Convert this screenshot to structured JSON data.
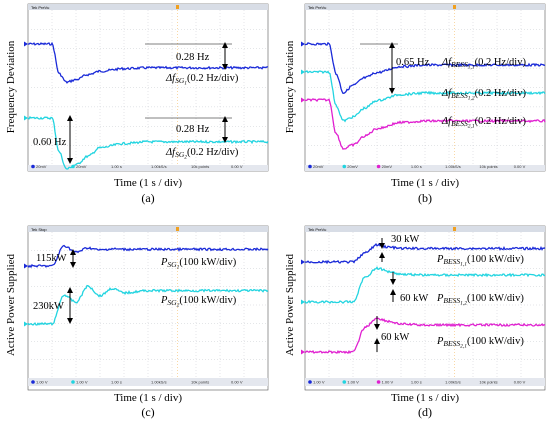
{
  "panels": [
    {
      "id": "a",
      "caption": "(a)",
      "ylabel": "Frequency Deviation",
      "xlabel": "Time (1 s / div)",
      "top_status": "Tek PreVu",
      "bottom_status": [
        "20mV",
        "20mV",
        "1.00 s",
        "1.00kS/s",
        "10k points",
        "0.00 V"
      ],
      "annotations": [
        "0.28 Hz",
        "0.28 Hz",
        "0.60 Hz"
      ],
      "legend": [
        {
          "base": "Δf",
          "sub": "SG",
          "subsub": "1",
          "scale": "(0.2 Hz/div)",
          "color": "#1a2ad8"
        },
        {
          "base": "Δf",
          "sub": "SG",
          "subsub": "2",
          "scale": "(0.2 Hz/div)",
          "color": "#22d4e0"
        }
      ]
    },
    {
      "id": "b",
      "caption": "(b)",
      "ylabel": "Frequency Deviation",
      "xlabel": "Time (1 s / div)",
      "top_status": "Tek PreVu",
      "bottom_status": [
        "20mV",
        "20mV",
        "20mV",
        "1.00 s",
        "1.00kS/s",
        "10k points",
        "0.00 V"
      ],
      "annotations": [
        "0.65 Hz"
      ],
      "legend": [
        {
          "base": "Δf",
          "sub": "BESS",
          "subsub": "1,1",
          "scale": "(0.2 Hz/div)",
          "color": "#1a2ad8"
        },
        {
          "base": "Δf",
          "sub": "BESS",
          "subsub": "1,2",
          "scale": "(0.2 Hz/div)",
          "color": "#22d4e0"
        },
        {
          "base": "Δf",
          "sub": "BESS",
          "subsub": "2,1",
          "scale": "(0.2 Hz/div)",
          "color": "#e020d0"
        }
      ]
    },
    {
      "id": "c",
      "caption": "(c)",
      "ylabel": "Active Power Supplied",
      "xlabel": "Time (1 s / div)",
      "top_status": "Tek Stop",
      "bottom_status": [
        "1.00 V",
        "1.00 V",
        "1.00 s",
        "1.00kS/s",
        "10k points",
        "0.00 V"
      ],
      "annotations": [
        "115kW",
        "230kW"
      ],
      "legend": [
        {
          "base": "P",
          "sub": "SG",
          "subsub": "1",
          "scale": "(100 kW/div)",
          "color": "#1a2ad8"
        },
        {
          "base": "P",
          "sub": "SG",
          "subsub": "2",
          "scale": "(100 kW/div)",
          "color": "#22d4e0"
        }
      ]
    },
    {
      "id": "d",
      "caption": "(d)",
      "ylabel": "Active Power Supplied",
      "xlabel": "Time (1 s / div)",
      "top_status": "Tek PreVu",
      "bottom_status": [
        "1.00 V",
        "1.00 V",
        "1.00 V",
        "1.00 s",
        "1.00kS/s",
        "10k points",
        "0.00 V"
      ],
      "annotations": [
        "30 kW",
        "60 kW",
        "60 kW"
      ],
      "legend": [
        {
          "base": "P",
          "sub": "BESS",
          "subsub": "1,1",
          "scale": "(100 kW/div)",
          "color": "#1a2ad8"
        },
        {
          "base": "P",
          "sub": "BESS",
          "subsub": "1,2",
          "scale": "(100 kW/div)",
          "color": "#22d4e0"
        },
        {
          "base": "P",
          "sub": "BESS",
          "subsub": "2,1",
          "scale": "(100 kW/div)",
          "color": "#e020d0"
        }
      ]
    }
  ],
  "chart_data": [
    {
      "type": "line",
      "title": "",
      "xlabel": "Time (1 s / div)",
      "ylabel": "Frequency Deviation",
      "x_unit": "div",
      "x": [
        0,
        1,
        1.3,
        1.6,
        2,
        2.5,
        3,
        4,
        5,
        6,
        7,
        8,
        9,
        10
      ],
      "series": [
        {
          "name": "Δf_SG1 (0.2 Hz/div)",
          "color": "#1a2ad8",
          "values": [
            0,
            0,
            -0.35,
            -0.45,
            -0.42,
            -0.36,
            -0.32,
            -0.29,
            -0.28,
            -0.28,
            -0.28,
            -0.28,
            -0.28,
            -0.28
          ]
        },
        {
          "name": "Δf_SG2 (0.2 Hz/div)",
          "color": "#22d4e0",
          "values": [
            0,
            0,
            -0.4,
            -0.6,
            -0.55,
            -0.45,
            -0.35,
            -0.3,
            -0.28,
            -0.28,
            -0.28,
            -0.28,
            -0.28,
            -0.28
          ]
        }
      ]
    },
    {
      "type": "line",
      "title": "",
      "xlabel": "Time (1 s / div)",
      "ylabel": "Frequency Deviation",
      "x_unit": "div",
      "x": [
        0,
        1,
        1.3,
        1.6,
        2,
        2.5,
        3,
        4,
        5,
        6,
        7,
        8,
        9,
        10
      ],
      "series": [
        {
          "name": "Δf_BESS1,1 (0.2 Hz/div)",
          "color": "#1a2ad8",
          "values": [
            0,
            0,
            -0.4,
            -0.65,
            -0.55,
            -0.45,
            -0.38,
            -0.3,
            -0.28,
            -0.28,
            -0.28,
            -0.28,
            -0.28,
            -0.28
          ]
        },
        {
          "name": "Δf_BESS1,2 (0.2 Hz/div)",
          "color": "#22d4e0",
          "values": [
            0,
            0,
            -0.45,
            -0.65,
            -0.6,
            -0.48,
            -0.38,
            -0.3,
            -0.28,
            -0.28,
            -0.28,
            -0.28,
            -0.28,
            -0.28
          ]
        },
        {
          "name": "Δf_BESS2,1 (0.2 Hz/div)",
          "color": "#e020d0",
          "values": [
            0,
            0,
            -0.45,
            -0.65,
            -0.6,
            -0.48,
            -0.38,
            -0.3,
            -0.28,
            -0.28,
            -0.28,
            -0.28,
            -0.28,
            -0.28
          ]
        }
      ]
    },
    {
      "type": "line",
      "title": "",
      "xlabel": "Time (1 s / div)",
      "ylabel": "Active Power Supplied",
      "x_unit": "div",
      "x": [
        0,
        1,
        1.5,
        2,
        2.5,
        3,
        3.5,
        4,
        5,
        6,
        7,
        8,
        9,
        10
      ],
      "series": [
        {
          "name": "P_SG1 (100 kW/div)",
          "color": "#1a2ad8",
          "values": [
            0,
            0,
            140,
            95,
            125,
            110,
            118,
            115,
            115,
            115,
            115,
            115,
            115,
            115
          ]
        },
        {
          "name": "P_SG2 (100 kW/div)",
          "color": "#22d4e0",
          "values": [
            0,
            0,
            200,
            150,
            260,
            195,
            245,
            215,
            230,
            230,
            230,
            230,
            230,
            230
          ]
        }
      ]
    },
    {
      "type": "line",
      "title": "",
      "xlabel": "Time (1 s / div)",
      "ylabel": "Active Power Supplied",
      "x_unit": "div",
      "x": [
        0,
        1,
        2,
        2.5,
        3,
        3.5,
        4,
        5,
        6,
        7,
        8,
        9,
        10
      ],
      "series": [
        {
          "name": "P_BESS1,1 (100 kW/div)",
          "color": "#1a2ad8",
          "values": [
            0,
            0,
            0,
            20,
            38,
            33,
            30,
            30,
            30,
            30,
            30,
            30,
            30
          ]
        },
        {
          "name": "P_BESS1,2 (100 kW/div)",
          "color": "#22d4e0",
          "values": [
            0,
            0,
            0,
            55,
            75,
            68,
            62,
            60,
            60,
            60,
            60,
            60,
            60
          ]
        },
        {
          "name": "P_BESS2,1 (100 kW/div)",
          "color": "#e020d0",
          "values": [
            0,
            0,
            0,
            55,
            75,
            68,
            62,
            60,
            60,
            60,
            60,
            60,
            60
          ]
        }
      ]
    }
  ]
}
